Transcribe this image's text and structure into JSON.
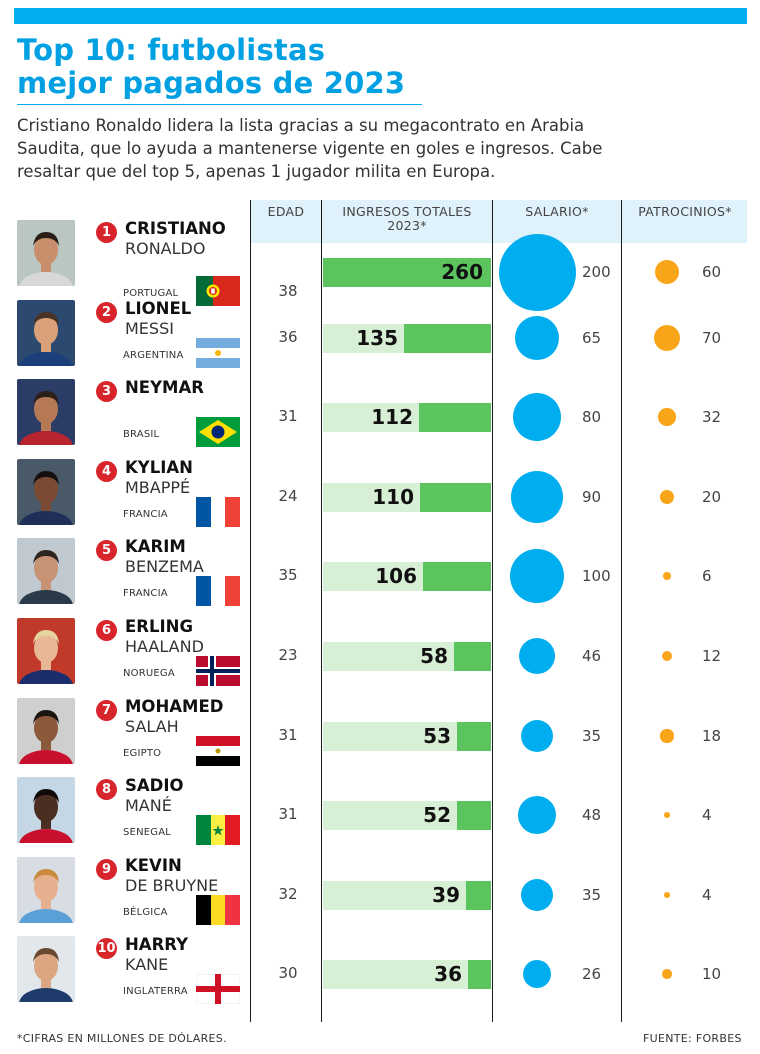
{
  "header": {
    "title_line1": "Top 10: futbolistas",
    "title_line2": "mejor pagados de 2023",
    "intro": "Cristiano Ronaldo lidera la lista gracias a su megacontrato en Arabia Saudita, que lo ayuda a mantenerse vigente en goles e ingresos. Cabe resaltar que del top 5, apenas 1 jugador milita en Europa."
  },
  "columns": {
    "age": "EDAD",
    "income_line1": "INGRESOS TOTALES",
    "income_line2": "2023*",
    "salary": "SALARIO*",
    "sponsors": "PATROCINIOS*"
  },
  "footer": {
    "note": "*CIFRAS EN MILLONES DE DÓLARES.",
    "source": "FUENTE: FORBES"
  },
  "colors": {
    "accent": "#00aeef",
    "bar": "#5cc45e",
    "bar_track": "#d7efd4",
    "salary": "#00aeef",
    "sponsors": "#f9a51a",
    "rank_badge": "#d7252b"
  },
  "chart_data": {
    "type": "table",
    "title": "Top 10: futbolistas mejor pagados de 2023",
    "unit": "*CIFRAS EN MILLONES DE DÓLARES.",
    "columns": [
      "EDAD",
      "INGRESOS TOTALES 2023*",
      "SALARIO*",
      "PATROCINIOS*"
    ],
    "rows": [
      {
        "rank": "1",
        "first": "CRISTIANO",
        "last": "RONALDO",
        "country": "PORTUGAL",
        "flag": "portugal",
        "age": 38,
        "income": 260,
        "salary": 200,
        "sponsors": 60
      },
      {
        "rank": "2",
        "first": "LIONEL",
        "last": "MESSI",
        "country": "ARGENTINA",
        "flag": "argentina",
        "age": 36,
        "income": 135,
        "salary": 65,
        "sponsors": 70
      },
      {
        "rank": "3",
        "first": "NEYMAR",
        "last": "",
        "country": "BRASIL",
        "flag": "brazil",
        "age": 31,
        "income": 112,
        "salary": 80,
        "sponsors": 32
      },
      {
        "rank": "4",
        "first": "KYLIAN",
        "last": "MBAPPÉ",
        "country": "FRANCIA",
        "flag": "france",
        "age": 24,
        "income": 110,
        "salary": 90,
        "sponsors": 20
      },
      {
        "rank": "5",
        "first": "KARIM",
        "last": "BENZEMA",
        "country": "FRANCIA",
        "flag": "france",
        "age": 35,
        "income": 106,
        "salary": 100,
        "sponsors": 6
      },
      {
        "rank": "6",
        "first": "ERLING",
        "last": "HAALAND",
        "country": "NORUEGA",
        "flag": "norway",
        "age": 23,
        "income": 58,
        "salary": 46,
        "sponsors": 12
      },
      {
        "rank": "7",
        "first": "MOHAMED",
        "last": "SALAH",
        "country": "EGIPTO",
        "flag": "egypt",
        "age": 31,
        "income": 53,
        "salary": 35,
        "sponsors": 18
      },
      {
        "rank": "8",
        "first": "SADIO",
        "last": "MANÉ",
        "country": "SENEGAL",
        "flag": "senegal",
        "age": 31,
        "income": 52,
        "salary": 48,
        "sponsors": 4
      },
      {
        "rank": "9",
        "first": "KEVIN",
        "last": "DE BRUYNE",
        "country": "BÉLGICA",
        "flag": "belgium",
        "age": 32,
        "income": 39,
        "salary": 35,
        "sponsors": 4
      },
      {
        "rank": "10",
        "first": "HARRY",
        "last": "KANE",
        "country": "INGLATERRA",
        "flag": "england",
        "age": 30,
        "income": 36,
        "salary": 26,
        "sponsors": 10
      }
    ]
  }
}
